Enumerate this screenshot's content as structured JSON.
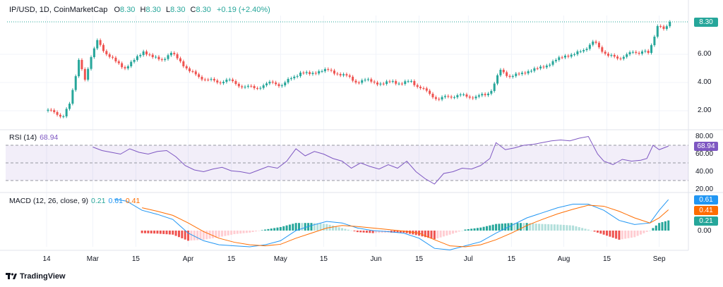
{
  "header": {
    "symbol": "IP/USD, 1D, CoinMarketCap",
    "o_label": "O",
    "o": "8.30",
    "h_label": "H",
    "h": "8.30",
    "l_label": "L",
    "l": "8.30",
    "c_label": "C",
    "c": "8.30",
    "change": "+0.19 (+2.40%)"
  },
  "rsi_label": {
    "name": "RSI (14)",
    "value": "68.94"
  },
  "macd_label": {
    "name": "MACD (12, 26, close, 9)",
    "hist": "0.21",
    "macd": "0.61",
    "signal": "0.41"
  },
  "badges": {
    "price": "8.30",
    "rsi": "68.94",
    "macd": "0.61",
    "signal": "0.41",
    "hist": "0.21"
  },
  "brand": "TradingView",
  "colors": {
    "up": "#26a69a",
    "down": "#ef5350",
    "rsi": "#7e57c2",
    "macd": "#2196f3",
    "signal": "#ff6d00"
  },
  "chart_data": {
    "type": "candlestick",
    "price_axis": {
      "ticks": [
        "2.00",
        "4.00",
        "6.00",
        "8.30"
      ],
      "range": [
        1.2,
        8.6
      ]
    },
    "x_ticks": [
      "14",
      "Mar",
      "15",
      "Apr",
      "15",
      "May",
      "15",
      "Jun",
      "15",
      "Jul",
      "15",
      "Aug",
      "15",
      "Sep"
    ],
    "close": [
      [
        "02-14",
        1.9
      ],
      [
        "02-17",
        1.6
      ],
      [
        "02-20",
        2.5
      ],
      [
        "02-22",
        5.6
      ],
      [
        "02-25",
        4.2
      ],
      [
        "02-27",
        5.8
      ],
      [
        "03-01",
        7.0
      ],
      [
        "03-03",
        6.0
      ],
      [
        "03-06",
        5.5
      ],
      [
        "03-09",
        5.0
      ],
      [
        "03-12",
        5.6
      ],
      [
        "03-15",
        6.2
      ],
      [
        "03-18",
        5.8
      ],
      [
        "03-21",
        5.6
      ],
      [
        "03-24",
        6.1
      ],
      [
        "03-27",
        5.5
      ],
      [
        "03-30",
        4.8
      ],
      [
        "04-02",
        4.4
      ],
      [
        "04-05",
        4.2
      ],
      [
        "04-08",
        4.0
      ],
      [
        "04-11",
        4.2
      ],
      [
        "04-14",
        3.9
      ],
      [
        "04-17",
        3.7
      ],
      [
        "04-20",
        3.6
      ],
      [
        "04-23",
        3.8
      ],
      [
        "04-26",
        4.0
      ],
      [
        "04-29",
        3.8
      ],
      [
        "05-02",
        4.3
      ],
      [
        "05-05",
        4.7
      ],
      [
        "05-08",
        4.6
      ],
      [
        "05-11",
        4.8
      ],
      [
        "05-14",
        4.9
      ],
      [
        "05-17",
        4.6
      ],
      [
        "05-20",
        4.5
      ],
      [
        "05-23",
        4.0
      ],
      [
        "05-26",
        4.2
      ],
      [
        "05-29",
        4.0
      ],
      [
        "06-01",
        3.9
      ],
      [
        "06-04",
        4.1
      ],
      [
        "06-07",
        3.9
      ],
      [
        "06-10",
        4.1
      ],
      [
        "06-13",
        3.6
      ],
      [
        "06-16",
        3.2
      ],
      [
        "06-19",
        2.8
      ],
      [
        "06-22",
        3.0
      ],
      [
        "06-25",
        3.1
      ],
      [
        "06-28",
        3.0
      ],
      [
        "07-01",
        3.0
      ],
      [
        "07-04",
        3.1
      ],
      [
        "07-07",
        3.4
      ],
      [
        "07-09",
        4.9
      ],
      [
        "07-12",
        4.4
      ],
      [
        "07-15",
        4.6
      ],
      [
        "07-18",
        4.8
      ],
      [
        "07-21",
        5.0
      ],
      [
        "07-24",
        5.2
      ],
      [
        "07-27",
        5.6
      ],
      [
        "07-30",
        5.9
      ],
      [
        "08-02",
        6.0
      ],
      [
        "08-05",
        6.3
      ],
      [
        "08-08",
        6.9
      ],
      [
        "08-11",
        6.5
      ],
      [
        "08-13",
        5.9
      ],
      [
        "08-16",
        5.7
      ],
      [
        "08-19",
        6.0
      ],
      [
        "08-22",
        6.1
      ],
      [
        "08-25",
        6.2
      ],
      [
        "08-27",
        6.1
      ],
      [
        "08-29",
        8.0
      ],
      [
        "09-01",
        7.8
      ],
      [
        "09-03",
        8.3
      ]
    ],
    "rsi": {
      "ticks": [
        "20.00",
        "40.00",
        "60.00",
        "80.00"
      ],
      "bands": [
        30,
        70
      ],
      "values": [
        [
          "03-01",
          68
        ],
        [
          "03-04",
          64
        ],
        [
          "03-07",
          62
        ],
        [
          "03-10",
          60
        ],
        [
          "03-13",
          66
        ],
        [
          "03-16",
          62
        ],
        [
          "03-19",
          60
        ],
        [
          "03-22",
          63
        ],
        [
          "03-25",
          64
        ],
        [
          "03-28",
          57
        ],
        [
          "03-31",
          47
        ],
        [
          "04-03",
          42
        ],
        [
          "04-06",
          40
        ],
        [
          "04-09",
          43
        ],
        [
          "04-12",
          45
        ],
        [
          "04-15",
          41
        ],
        [
          "04-18",
          40
        ],
        [
          "04-21",
          38
        ],
        [
          "04-24",
          42
        ],
        [
          "04-27",
          46
        ],
        [
          "04-30",
          44
        ],
        [
          "05-03",
          52
        ],
        [
          "05-06",
          66
        ],
        [
          "05-09",
          58
        ],
        [
          "05-12",
          63
        ],
        [
          "05-15",
          60
        ],
        [
          "05-18",
          55
        ],
        [
          "05-21",
          52
        ],
        [
          "05-24",
          44
        ],
        [
          "05-27",
          50
        ],
        [
          "05-30",
          46
        ],
        [
          "06-02",
          43
        ],
        [
          "06-05",
          48
        ],
        [
          "06-08",
          44
        ],
        [
          "06-11",
          52
        ],
        [
          "06-14",
          40
        ],
        [
          "06-17",
          32
        ],
        [
          "06-20",
          26
        ],
        [
          "06-23",
          38
        ],
        [
          "06-26",
          40
        ],
        [
          "06-29",
          44
        ],
        [
          "07-02",
          43
        ],
        [
          "07-05",
          47
        ],
        [
          "07-08",
          55
        ],
        [
          "07-10",
          73
        ],
        [
          "07-13",
          65
        ],
        [
          "07-16",
          67
        ],
        [
          "07-19",
          70
        ],
        [
          "07-22",
          71
        ],
        [
          "07-25",
          73
        ],
        [
          "07-28",
          75
        ],
        [
          "07-31",
          76
        ],
        [
          "08-03",
          75
        ],
        [
          "08-06",
          78
        ],
        [
          "08-09",
          80
        ],
        [
          "08-12",
          60
        ],
        [
          "08-14",
          52
        ],
        [
          "08-17",
          48
        ],
        [
          "08-20",
          54
        ],
        [
          "08-23",
          52
        ],
        [
          "08-26",
          53
        ],
        [
          "08-28",
          55
        ],
        [
          "08-30",
          70
        ],
        [
          "09-01",
          65
        ],
        [
          "09-04",
          69
        ]
      ]
    },
    "macd": {
      "ticks": [
        "0.00"
      ],
      "values": [
        [
          "03-08",
          0.62,
          null
        ],
        [
          "03-12",
          0.58,
          null
        ],
        [
          "03-17",
          0.4,
          0.45
        ],
        [
          "03-22",
          0.32,
          0.38
        ],
        [
          "03-27",
          0.22,
          0.3
        ],
        [
          "04-01",
          -0.05,
          0.15
        ],
        [
          "04-06",
          -0.2,
          -0.02
        ],
        [
          "04-11",
          -0.28,
          -0.15
        ],
        [
          "04-16",
          -0.3,
          -0.23
        ],
        [
          "04-21",
          -0.32,
          -0.28
        ],
        [
          "04-26",
          -0.28,
          -0.3
        ],
        [
          "05-01",
          -0.2,
          -0.27
        ],
        [
          "05-06",
          0.0,
          -0.15
        ],
        [
          "05-11",
          0.1,
          -0.05
        ],
        [
          "05-16",
          0.18,
          0.05
        ],
        [
          "05-21",
          0.15,
          0.1
        ],
        [
          "05-26",
          0.05,
          0.08
        ],
        [
          "05-31",
          0.0,
          0.05
        ],
        [
          "06-05",
          -0.02,
          0.02
        ],
        [
          "06-10",
          -0.05,
          -0.01
        ],
        [
          "06-15",
          -0.15,
          -0.05
        ],
        [
          "06-20",
          -0.35,
          -0.18
        ],
        [
          "06-25",
          -0.38,
          -0.3
        ],
        [
          "06-30",
          -0.3,
          -0.32
        ],
        [
          "07-05",
          -0.22,
          -0.28
        ],
        [
          "07-10",
          -0.05,
          -0.18
        ],
        [
          "07-15",
          0.1,
          -0.05
        ],
        [
          "07-20",
          0.25,
          0.1
        ],
        [
          "07-25",
          0.35,
          0.22
        ],
        [
          "07-30",
          0.45,
          0.33
        ],
        [
          "08-04",
          0.52,
          0.42
        ],
        [
          "08-09",
          0.52,
          0.5
        ],
        [
          "08-14",
          0.4,
          0.48
        ],
        [
          "08-19",
          0.2,
          0.38
        ],
        [
          "08-24",
          0.12,
          0.25
        ],
        [
          "08-29",
          0.15,
          0.15
        ],
        [
          "09-01",
          0.4,
          0.25
        ],
        [
          "09-04",
          0.61,
          0.41
        ]
      ]
    }
  }
}
